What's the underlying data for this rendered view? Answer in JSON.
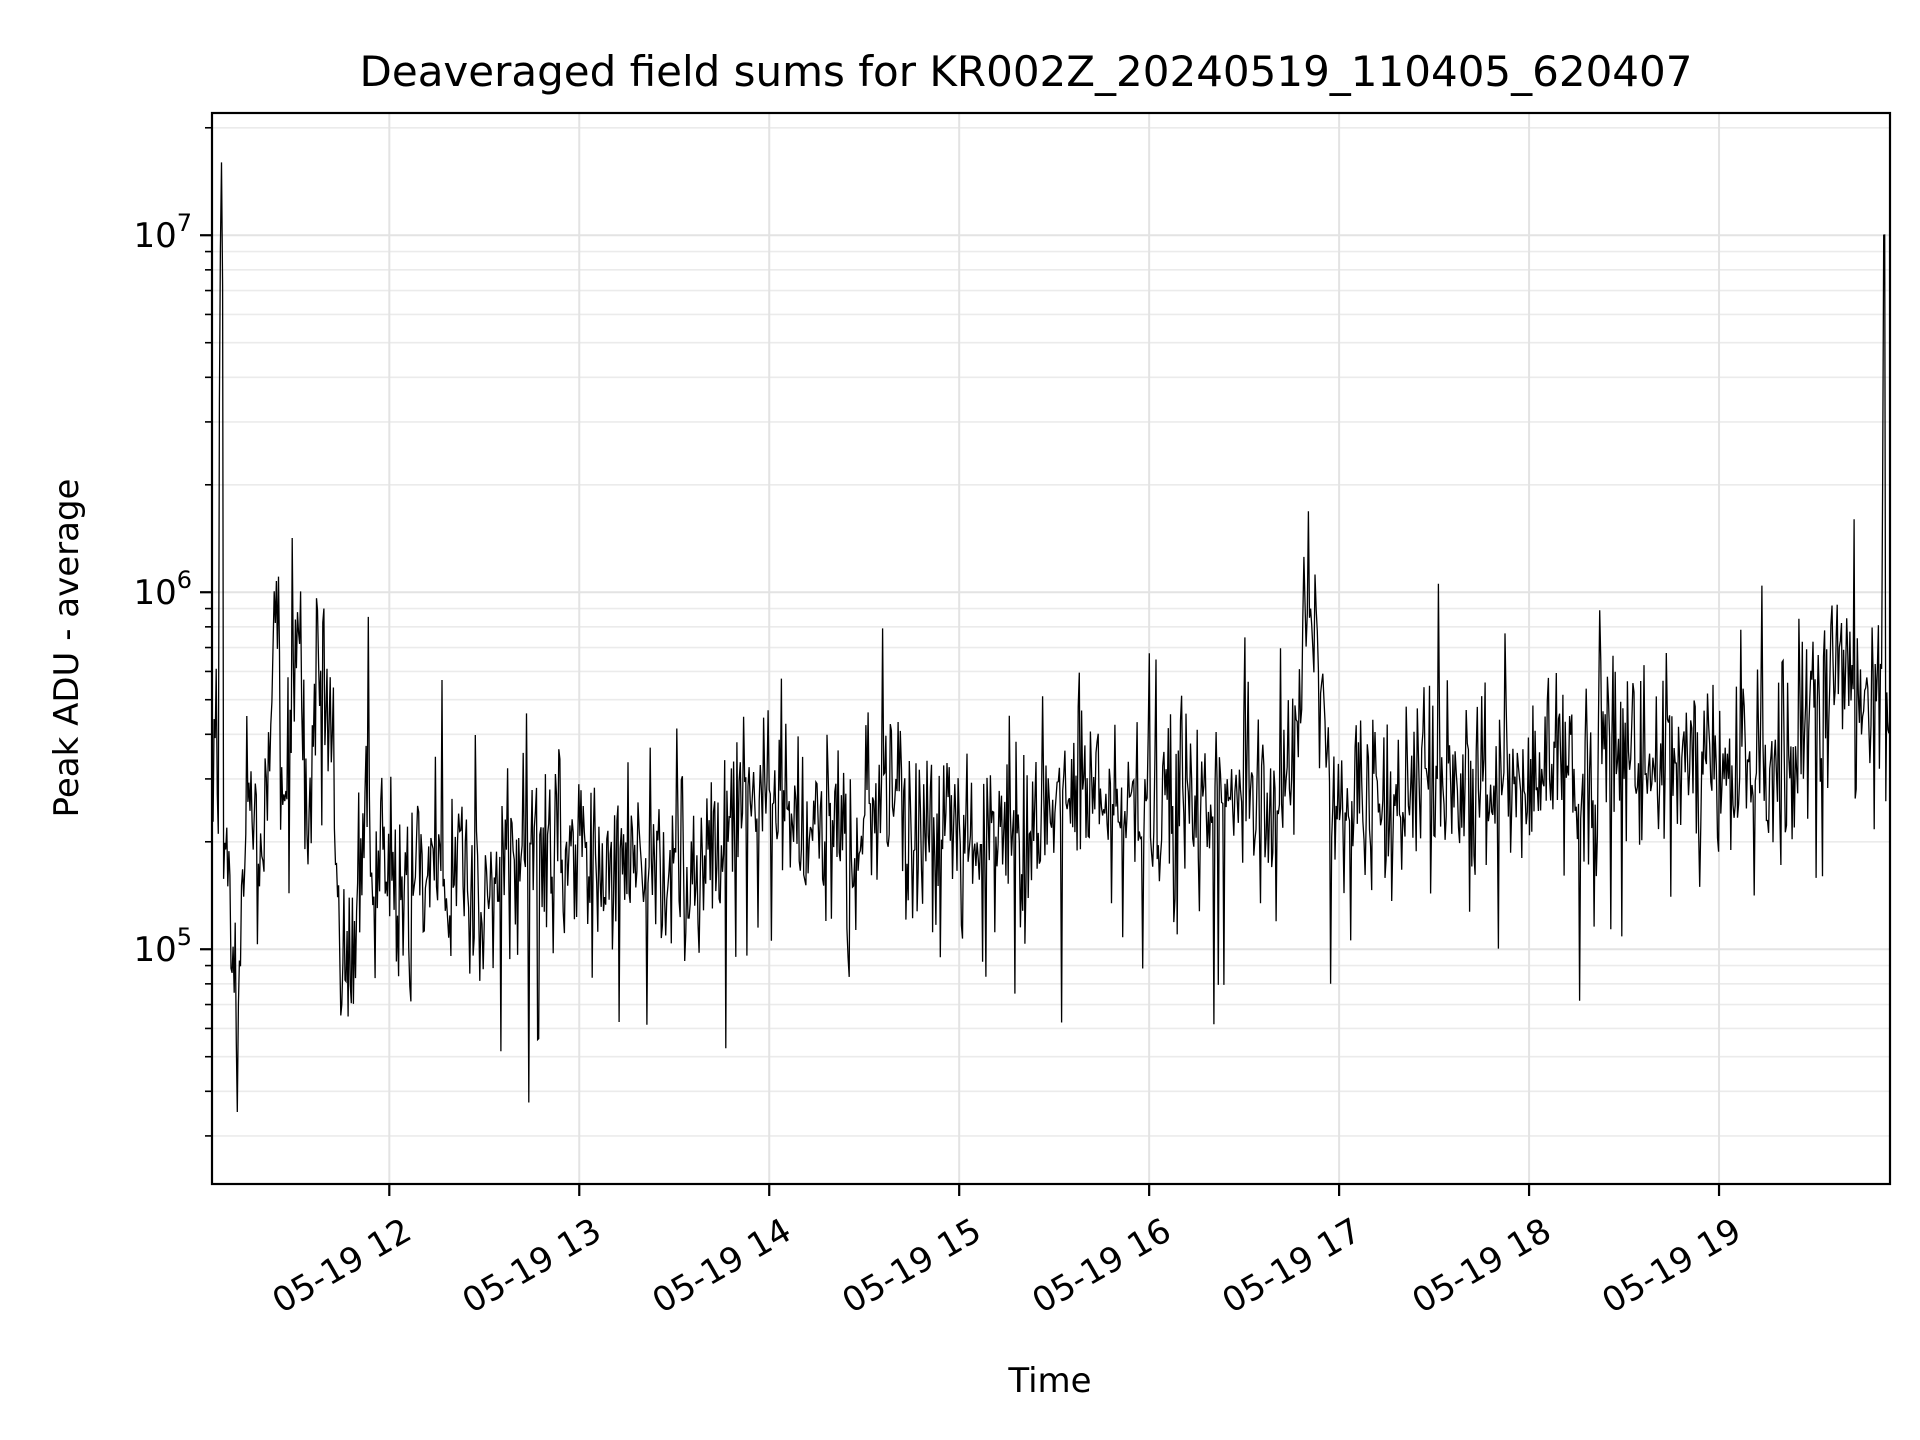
{
  "chart_data": {
    "type": "line",
    "title": "Deaveraged field sums for KR002Z_20240519_110405_620407",
    "xlabel": "Time",
    "ylabel": "Peak ADU - average",
    "yscale": "log",
    "xlim": [
      "2024-05-19 11:04",
      "2024-05-19 19:54"
    ],
    "ylim": [
      22000,
      22000000
    ],
    "grid": true,
    "x_ticks": [
      "2024-05-19 12:00",
      "2024-05-19 13:00",
      "2024-05-19 14:00",
      "2024-05-19 15:00",
      "2024-05-19 16:00",
      "2024-05-19 17:00",
      "2024-05-19 18:00",
      "2024-05-19 19:00"
    ],
    "x_tick_labels": [
      "05-19 12",
      "05-19 13",
      "05-19 14",
      "05-19 15",
      "05-19 16",
      "05-19 17",
      "05-19 18",
      "05-19 19"
    ],
    "y_ticks": [
      100000,
      1000000,
      10000000
    ],
    "y_tick_labels": [
      {
        "base": "10",
        "exp": "5"
      },
      {
        "base": "10",
        "exp": "6"
      },
      {
        "base": "10",
        "exp": "7"
      }
    ],
    "series": [
      {
        "color": "#000000",
        "x": [
          "2024-05-19 11:04",
          "2024-05-19 11:07",
          "2024-05-19 11:09",
          "2024-05-19 11:12",
          "2024-05-19 11:15",
          "2024-05-19 11:19",
          "2024-05-19 11:24",
          "2024-05-19 11:27",
          "2024-05-19 11:31",
          "2024-05-19 11:34",
          "2024-05-19 11:38",
          "2024-05-19 11:42",
          "2024-05-19 11:45",
          "2024-05-19 11:49",
          "2024-05-19 11:53",
          "2024-05-19 11:58",
          "2024-05-19 12:04",
          "2024-05-19 12:10",
          "2024-05-19 12:17",
          "2024-05-19 12:24",
          "2024-05-19 12:30",
          "2024-05-19 12:37",
          "2024-05-19 12:43",
          "2024-05-19 12:50",
          "2024-05-19 12:56",
          "2024-05-19 13:03",
          "2024-05-19 13:08",
          "2024-05-19 13:14",
          "2024-05-19 13:21",
          "2024-05-19 13:28",
          "2024-05-19 13:34",
          "2024-05-19 13:41",
          "2024-05-19 13:47",
          "2024-05-19 13:54",
          "2024-05-19 14:00",
          "2024-05-19 14:07",
          "2024-05-19 14:13",
          "2024-05-19 14:20",
          "2024-05-19 14:27",
          "2024-05-19 14:33",
          "2024-05-19 14:40",
          "2024-05-19 14:46",
          "2024-05-19 14:53",
          "2024-05-19 15:00",
          "2024-05-19 15:06",
          "2024-05-19 15:13",
          "2024-05-19 15:19",
          "2024-05-19 15:26",
          "2024-05-19 15:32",
          "2024-05-19 15:39",
          "2024-05-19 15:46",
          "2024-05-19 15:52",
          "2024-05-19 15:59",
          "2024-05-19 16:05",
          "2024-05-19 16:12",
          "2024-05-19 16:18",
          "2024-05-19 16:25",
          "2024-05-19 16:32",
          "2024-05-19 16:38",
          "2024-05-19 16:45",
          "2024-05-19 16:51",
          "2024-05-19 16:58",
          "2024-05-19 17:04",
          "2024-05-19 17:11",
          "2024-05-19 17:18",
          "2024-05-19 17:24",
          "2024-05-19 17:31",
          "2024-05-19 17:37",
          "2024-05-19 17:44",
          "2024-05-19 17:51",
          "2024-05-19 17:57",
          "2024-05-19 18:04",
          "2024-05-19 18:10",
          "2024-05-19 18:17",
          "2024-05-19 18:23",
          "2024-05-19 18:30",
          "2024-05-19 18:37",
          "2024-05-19 18:43",
          "2024-05-19 18:50",
          "2024-05-19 18:56",
          "2024-05-19 19:03",
          "2024-05-19 19:09",
          "2024-05-19 19:16",
          "2024-05-19 19:22",
          "2024-05-19 19:27",
          "2024-05-19 19:31",
          "2024-05-19 19:35",
          "2024-05-19 19:38",
          "2024-05-19 19:41",
          "2024-05-19 19:44",
          "2024-05-19 19:47",
          "2024-05-19 19:50",
          "2024-05-19 19:52",
          "2024-05-19 19:54"
        ],
        "values": [
          350000,
          16000000,
          150000,
          35000,
          450000,
          150000,
          820000,
          260000,
          880000,
          210000,
          480000,
          400000,
          70000,
          120000,
          220000,
          190000,
          160000,
          210000,
          150000,
          200000,
          120000,
          190000,
          170000,
          210000,
          200000,
          160000,
          140000,
          210000,
          180000,
          150000,
          170000,
          230000,
          200000,
          260000,
          280000,
          240000,
          220000,
          230000,
          180000,
          260000,
          300000,
          190000,
          240000,
          230000,
          180000,
          220000,
          200000,
          260000,
          230000,
          280000,
          240000,
          220000,
          260000,
          270000,
          300000,
          250000,
          260000,
          280000,
          240000,
          300000,
          900000,
          250000,
          260000,
          310000,
          290000,
          280000,
          300000,
          310000,
          280000,
          350000,
          300000,
          320000,
          340000,
          310000,
          330000,
          300000,
          310000,
          320000,
          350000,
          330000,
          300000,
          340000,
          320000,
          350000,
          400000,
          480000,
          550000,
          700000,
          480000,
          520000,
          540000,
          600000,
          10000000,
          450000
        ]
      }
    ]
  }
}
